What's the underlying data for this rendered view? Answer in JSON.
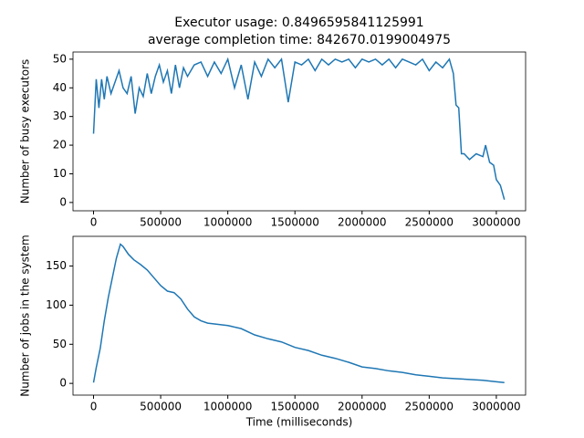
{
  "chart_data": [
    {
      "type": "line",
      "title": "Executor usage: 0.8496595841125991",
      "subtitle": "average completion time: 842670.0199004975",
      "y_label": "Number of busy executors",
      "x": [
        0,
        20000,
        40000,
        60000,
        80000,
        100000,
        130000,
        160000,
        190000,
        220000,
        250000,
        280000,
        310000,
        340000,
        370000,
        400000,
        430000,
        460000,
        490000,
        520000,
        550000,
        580000,
        610000,
        640000,
        670000,
        700000,
        750000,
        800000,
        850000,
        900000,
        950000,
        1000000,
        1050000,
        1100000,
        1150000,
        1200000,
        1250000,
        1300000,
        1350000,
        1400000,
        1450000,
        1500000,
        1550000,
        1600000,
        1650000,
        1700000,
        1750000,
        1800000,
        1850000,
        1900000,
        1950000,
        2000000,
        2050000,
        2100000,
        2150000,
        2200000,
        2250000,
        2300000,
        2350000,
        2400000,
        2450000,
        2500000,
        2550000,
        2600000,
        2650000,
        2680000,
        2700000,
        2720000,
        2740000,
        2760000,
        2800000,
        2850000,
        2900000,
        2920000,
        2950000,
        2980000,
        3000000,
        3030000,
        3060000
      ],
      "series": [
        {
          "color": "#1f77b4",
          "values": [
            24,
            43,
            33,
            43,
            36,
            44,
            38,
            42,
            46,
            40,
            38,
            44,
            31,
            40,
            37,
            45,
            38,
            44,
            48,
            42,
            46,
            38,
            48,
            40,
            47,
            44,
            48,
            49,
            44,
            49,
            45,
            50,
            40,
            48,
            36,
            49,
            44,
            50,
            47,
            50,
            35,
            49,
            48,
            50,
            46,
            50,
            48,
            50,
            49,
            50,
            47,
            50,
            49,
            50,
            48,
            50,
            47,
            50,
            49,
            48,
            50,
            46,
            49,
            47,
            50,
            45,
            34,
            33,
            17,
            17,
            15,
            17,
            16,
            20,
            14,
            13,
            8,
            6,
            1
          ]
        }
      ],
      "xlim": [
        -153000,
        3218000
      ],
      "xticks": [
        0,
        500000,
        1000000,
        1500000,
        2000000,
        2500000,
        3000000
      ],
      "ylim": [
        -2.9,
        52.5
      ],
      "yticks": [
        0,
        10,
        20,
        30,
        40,
        50
      ]
    },
    {
      "type": "line",
      "x_label": "Time (milliseconds)",
      "y_label": "Number of jobs in the system",
      "x": [
        0,
        20000,
        50000,
        80000,
        110000,
        140000,
        170000,
        200000,
        220000,
        260000,
        300000,
        350000,
        400000,
        450000,
        500000,
        550000,
        600000,
        650000,
        700000,
        750000,
        800000,
        850000,
        900000,
        1000000,
        1100000,
        1200000,
        1300000,
        1400000,
        1500000,
        1600000,
        1700000,
        1800000,
        1900000,
        2000000,
        2100000,
        2200000,
        2300000,
        2400000,
        2500000,
        2600000,
        2700000,
        2800000,
        2900000,
        3000000,
        3060000
      ],
      "series": [
        {
          "color": "#1f77b4",
          "values": [
            1,
            20,
            45,
            80,
            110,
            135,
            160,
            178,
            175,
            165,
            158,
            152,
            145,
            135,
            125,
            118,
            116,
            108,
            95,
            85,
            80,
            77,
            76,
            74,
            70,
            62,
            57,
            53,
            46,
            42,
            36,
            32,
            27,
            21,
            19,
            16,
            14,
            11,
            9,
            7,
            6,
            5,
            4,
            2,
            1
          ]
        }
      ],
      "xlim": [
        -153000,
        3218000
      ],
      "xticks": [
        0,
        500000,
        1000000,
        1500000,
        2000000,
        2500000,
        3000000
      ],
      "ylim": [
        -15,
        188
      ],
      "yticks": [
        0,
        50,
        100,
        150
      ]
    }
  ]
}
